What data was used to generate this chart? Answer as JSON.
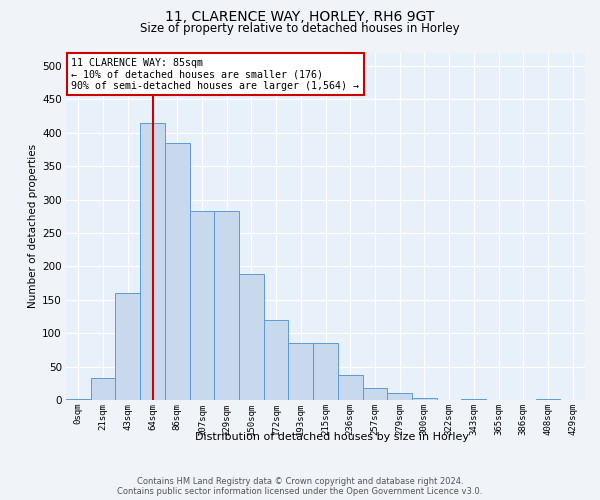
{
  "title_line1": "11, CLARENCE WAY, HORLEY, RH6 9GT",
  "title_line2": "Size of property relative to detached houses in Horley",
  "xlabel": "Distribution of detached houses by size in Horley",
  "ylabel": "Number of detached properties",
  "bar_color": "#c8d9ee",
  "bar_edge_color": "#5b9bd5",
  "bg_color": "#e8f0fa",
  "grid_color": "#d0daea",
  "categories": [
    "0sqm",
    "21sqm",
    "43sqm",
    "64sqm",
    "86sqm",
    "107sqm",
    "129sqm",
    "150sqm",
    "172sqm",
    "193sqm",
    "215sqm",
    "236sqm",
    "257sqm",
    "279sqm",
    "300sqm",
    "322sqm",
    "343sqm",
    "365sqm",
    "386sqm",
    "408sqm",
    "429sqm"
  ],
  "values": [
    2,
    33,
    160,
    415,
    385,
    283,
    283,
    188,
    120,
    85,
    85,
    38,
    18,
    10,
    3,
    0,
    2,
    0,
    0,
    1,
    0
  ],
  "vline_x_idx": 3,
  "vline_color": "#cc0000",
  "annotation_line1": "11 CLARENCE WAY: 85sqm",
  "annotation_line2": "← 10% of detached houses are smaller (176)",
  "annotation_line3": "90% of semi-detached houses are larger (1,564) →",
  "annotation_box_color": "#ffffff",
  "annotation_box_edge": "#cc0000",
  "ylim": [
    0,
    520
  ],
  "yticks": [
    0,
    50,
    100,
    150,
    200,
    250,
    300,
    350,
    400,
    450,
    500
  ],
  "footer_line1": "Contains HM Land Registry data © Crown copyright and database right 2024.",
  "footer_line2": "Contains public sector information licensed under the Open Government Licence v3.0."
}
